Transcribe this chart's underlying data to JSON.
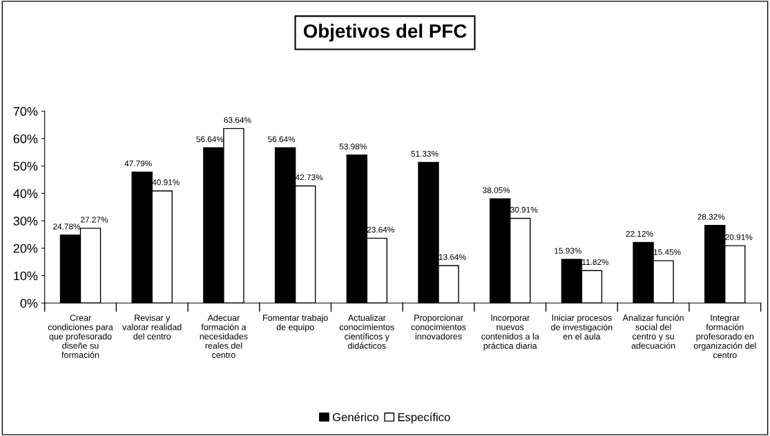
{
  "chart_data": {
    "type": "bar",
    "title": "Objetivos del PFC",
    "categories": [
      "Crear condiciones para que profesorado diseñe su formación",
      "Revisar y valorar realidad del centro",
      "Adecuar formación a necesidades reales del centro",
      "Fomentar trabajo de equipo",
      "Actualizar conocimientos científicos y didácticos",
      "Proporcionar conocimientos innovadores",
      "Incorporar nuevos contenidos a la práctica diaria",
      "Iniciar procesos de investigación en el aula",
      "Analizar función social del centro y su adecuación",
      "Integrar formación profesorado en organización del centro"
    ],
    "series": [
      {
        "name": "Genérico",
        "color": "#000000",
        "values": [
          24.78,
          47.79,
          56.64,
          56.64,
          53.98,
          51.33,
          38.05,
          15.93,
          22.12,
          28.32
        ],
        "value_labels": [
          "24.78%",
          "47.79%",
          "56.64%",
          "56.64%",
          "53.98%",
          "51.33%",
          "38.05%",
          "15.93%",
          "22.12%",
          "28.32%"
        ]
      },
      {
        "name": "Específico",
        "color": "#ffffff",
        "values": [
          27.27,
          40.91,
          63.64,
          42.73,
          23.64,
          13.64,
          30.91,
          11.82,
          15.45,
          20.91
        ],
        "value_labels": [
          "27.27%",
          "40.91%",
          "63.64%",
          "42.73%",
          "23.64%",
          "13.64%",
          "30.91%",
          "11.82%",
          "15.45%",
          "20.91%"
        ]
      }
    ],
    "ylim": [
      0,
      70
    ],
    "yticks": [
      {
        "value": 0,
        "label": "0%"
      },
      {
        "value": 10,
        "label": "10%"
      },
      {
        "value": 20,
        "label": "20%"
      },
      {
        "value": 30,
        "label": "30%"
      },
      {
        "value": 40,
        "label": "40%"
      },
      {
        "value": 50,
        "label": "50%"
      },
      {
        "value": 60,
        "label": "60%"
      },
      {
        "value": 70,
        "label": "70%"
      }
    ],
    "grid": false,
    "legend": "bottom"
  }
}
